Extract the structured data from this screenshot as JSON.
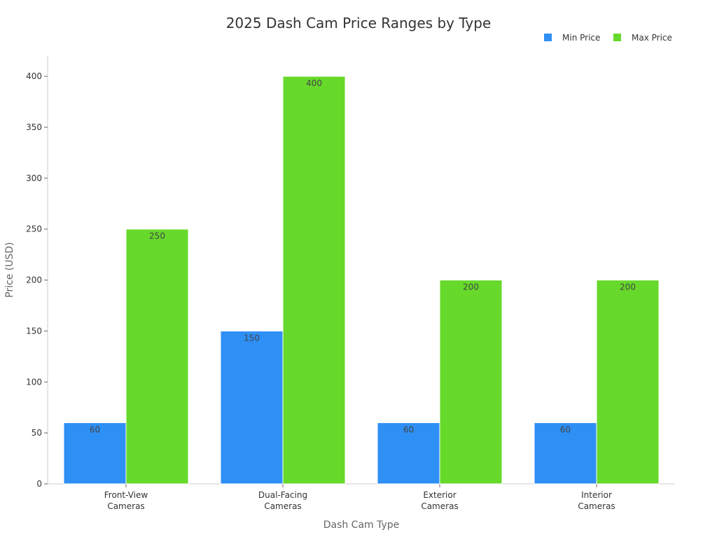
{
  "chart_data": {
    "type": "bar",
    "title": "2025 Dash Cam Price Ranges by Type",
    "xlabel": "Dash Cam Type",
    "ylabel": "Price (USD)",
    "categories": [
      [
        "Front-View",
        "Cameras"
      ],
      [
        "Dual-Facing",
        "Cameras"
      ],
      [
        "Exterior",
        "Cameras"
      ],
      [
        "Interior",
        "Cameras"
      ]
    ],
    "series": [
      {
        "name": "Min Price",
        "color": "#2e8ff5",
        "values": [
          60,
          150,
          60,
          60
        ]
      },
      {
        "name": "Max Price",
        "color": "#66d92b",
        "values": [
          250,
          400,
          200,
          200
        ]
      }
    ],
    "ylim": [
      0,
      420
    ],
    "yticks": [
      0,
      50,
      100,
      150,
      200,
      250,
      300,
      350,
      400
    ],
    "grid": false,
    "legend_position": "top-right",
    "data_labels": true
  }
}
